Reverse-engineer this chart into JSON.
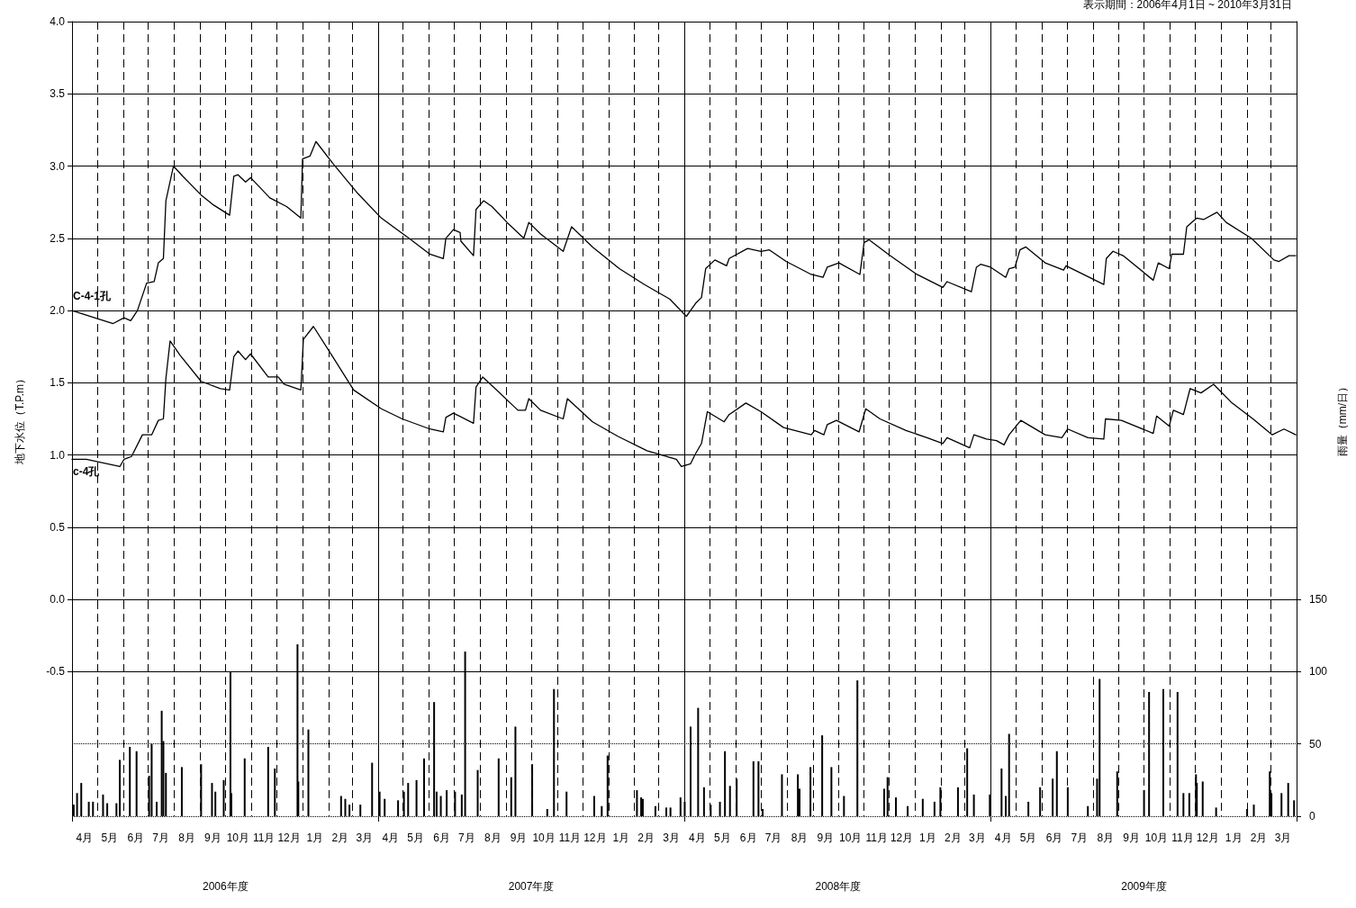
{
  "chart_data": {
    "type": "line",
    "subtitle": "表示期間：2006年4月1日 ~ 2010年3月31日",
    "ylabel": "地下水位（T.P.m）",
    "y2label": "雨量（mm/日）",
    "xlim": [
      "2006-04-01",
      "2010-04-01"
    ],
    "xticks": [
      {
        "value": "2006-04-01",
        "label": null
      },
      {
        "value": "2006-05-01",
        "label": null
      },
      {
        "value": "2006-06-01",
        "label": null
      },
      {
        "value": "2006-07-01",
        "label": null
      },
      {
        "value": "2006-08-01",
        "label": null
      },
      {
        "value": "2006-09-01",
        "label": null
      },
      {
        "value": "2006-10-01",
        "label": null
      },
      {
        "value": "2006-11-01",
        "label": null
      },
      {
        "value": "2006-12-01",
        "label": null
      },
      {
        "value": "2007-01-01",
        "label": null
      },
      {
        "value": "2007-02-01",
        "label": null
      },
      {
        "value": "2007-03-01",
        "label": null
      },
      {
        "value": "2007-04-01",
        "label": null
      },
      {
        "value": "2007-05-01",
        "label": null
      },
      {
        "value": "2007-06-01",
        "label": null
      },
      {
        "value": "2007-07-01",
        "label": null
      },
      {
        "value": "2007-08-01",
        "label": null
      },
      {
        "value": "2007-09-01",
        "label": null
      },
      {
        "value": "2007-10-01",
        "label": null
      },
      {
        "value": "2007-11-01",
        "label": null
      },
      {
        "value": "2007-12-01",
        "label": null
      },
      {
        "value": "2008-01-01",
        "label": null
      },
      {
        "value": "2008-02-01",
        "label": null
      },
      {
        "value": "2008-03-01",
        "label": null
      },
      {
        "value": "2008-04-01",
        "label": null
      },
      {
        "value": "2008-05-01",
        "label": null
      },
      {
        "value": "2008-06-01",
        "label": null
      },
      {
        "value": "2008-07-01",
        "label": null
      },
      {
        "value": "2008-08-01",
        "label": null
      },
      {
        "value": "2008-09-01",
        "label": null
      },
      {
        "value": "2008-10-01",
        "label": null
      },
      {
        "value": "2008-11-01",
        "label": null
      },
      {
        "value": "2008-12-01",
        "label": null
      },
      {
        "value": "2009-01-01",
        "label": null
      },
      {
        "value": "2009-02-01",
        "label": null
      },
      {
        "value": "2009-03-01",
        "label": null
      },
      {
        "value": "2009-04-01",
        "label": null
      },
      {
        "value": "2009-05-01",
        "label": null
      },
      {
        "value": "2009-06-01",
        "label": null
      },
      {
        "value": "2009-07-01",
        "label": null
      },
      {
        "value": "2009-08-01",
        "label": null
      },
      {
        "value": "2009-09-01",
        "label": null
      },
      {
        "value": "2009-10-01",
        "label": null
      },
      {
        "value": "2009-11-01",
        "label": null
      },
      {
        "value": "2009-12-01",
        "label": null
      },
      {
        "value": "2010-01-01",
        "label": null
      },
      {
        "value": "2010-02-01",
        "label": null
      },
      {
        "value": "2010-03-01",
        "label": null
      },
      {
        "value": "2010-04-01",
        "label": null
      },
      {
        "value": "2006-04-16",
        "label": "4月"
      },
      {
        "value": "2006-05-16",
        "label": "5月"
      },
      {
        "value": "2006-06-16",
        "label": "6月"
      },
      {
        "value": "2006-07-16",
        "label": "7月"
      },
      {
        "value": "2006-08-16",
        "label": "8月"
      },
      {
        "value": "2006-09-16",
        "label": "9月"
      },
      {
        "value": "2006-10-16",
        "label": "10月"
      },
      {
        "value": "2006-11-16",
        "label": "11月"
      },
      {
        "value": "2006-12-16",
        "label": "12月"
      },
      {
        "value": "2007-01-16",
        "label": "1月"
      },
      {
        "value": "2007-02-15",
        "label": "2月"
      },
      {
        "value": "2007-03-16",
        "label": "3月"
      },
      {
        "value": "2007-04-16",
        "label": "4月"
      },
      {
        "value": "2007-05-16",
        "label": "5月"
      },
      {
        "value": "2007-06-16",
        "label": "6月"
      },
      {
        "value": "2007-07-16",
        "label": "7月"
      },
      {
        "value": "2007-08-16",
        "label": "8月"
      },
      {
        "value": "2007-09-16",
        "label": "9月"
      },
      {
        "value": "2007-10-16",
        "label": "10月"
      },
      {
        "value": "2007-11-16",
        "label": "11月"
      },
      {
        "value": "2007-12-16",
        "label": "12月"
      },
      {
        "value": "2008-01-16",
        "label": "1月"
      },
      {
        "value": "2008-02-15",
        "label": "2月"
      },
      {
        "value": "2008-03-16",
        "label": "3月"
      },
      {
        "value": "2008-04-16",
        "label": "4月"
      },
      {
        "value": "2008-05-16",
        "label": "5月"
      },
      {
        "value": "2008-06-16",
        "label": "6月"
      },
      {
        "value": "2008-07-16",
        "label": "7月"
      },
      {
        "value": "2008-08-16",
        "label": "8月"
      },
      {
        "value": "2008-09-16",
        "label": "9月"
      },
      {
        "value": "2008-10-16",
        "label": "10月"
      },
      {
        "value": "2008-11-16",
        "label": "11月"
      },
      {
        "value": "2008-12-16",
        "label": "12月"
      },
      {
        "value": "2009-01-16",
        "label": "1月"
      },
      {
        "value": "2009-02-15",
        "label": "2月"
      },
      {
        "value": "2009-03-16",
        "label": "3月"
      },
      {
        "value": "2009-04-16",
        "label": "4月"
      },
      {
        "value": "2009-05-16",
        "label": "5月"
      },
      {
        "value": "2009-06-16",
        "label": "6月"
      },
      {
        "value": "2009-07-16",
        "label": "7月"
      },
      {
        "value": "2009-08-16",
        "label": "8月"
      },
      {
        "value": "2009-09-16",
        "label": "9月"
      },
      {
        "value": "2009-10-16",
        "label": "10月"
      },
      {
        "value": "2009-11-16",
        "label": "11月"
      },
      {
        "value": "2009-12-16",
        "label": "12月"
      },
      {
        "value": "2010-01-16",
        "label": "1月"
      },
      {
        "value": "2010-02-15",
        "label": "2月"
      },
      {
        "value": "2010-03-16",
        "label": "3月"
      }
    ],
    "x2lim": [
      "2006-04-01",
      "2010-04-01"
    ],
    "x2ticks": [
      {
        "value": "2006-04-01",
        "label": null
      },
      {
        "value": "2007-04-01",
        "label": null
      },
      {
        "value": "2008-04-01",
        "label": null
      },
      {
        "value": "2009-04-01",
        "label": null
      },
      {
        "value": "2010-04-01",
        "label": null
      },
      {
        "value": "2006-10-01",
        "label": "2006年度"
      },
      {
        "value": "2007-10-01",
        "label": "2007年度"
      },
      {
        "value": "2008-10-01",
        "label": "2008年度"
      },
      {
        "value": "2009-10-01",
        "label": "2009年度"
      }
    ],
    "ylim": [
      -1.5,
      4
    ],
    "yticks": [
      {
        "value": 4,
        "label": "4.0"
      },
      3.5,
      {
        "value": 3,
        "label": "3.0"
      },
      2.5,
      {
        "value": 2,
        "label": "2.0"
      },
      1.5,
      {
        "value": 1,
        "label": "1.0"
      },
      0.5,
      {
        "value": 0,
        "label": "0.0"
      },
      -0.5
    ],
    "y2lim": [
      0,
      550
    ],
    "y2ticks": [
      0,
      50,
      100,
      150
    ],
    "grid": true,
    "marker": "none",
    "line_style": "solid",
    "series": [
      {
        "name": "C-4-1孔",
        "color": "#000000",
        "x": [
          "2006-04-01",
          "2006-05-20",
          "2006-06-02",
          "2006-06-10",
          "2006-06-18",
          "2006-06-29",
          "2006-07-08",
          "2006-07-13",
          "2006-07-19",
          "2006-07-22",
          "2006-07-31",
          "2006-08-11",
          "2006-09-02",
          "2006-09-17",
          "2006-10-06",
          "2006-10-11",
          "2006-10-16",
          "2006-10-25",
          "2006-10-31",
          "2006-11-23",
          "2006-12-13",
          "2006-12-30",
          "2007-01-01",
          "2007-01-10",
          "2007-01-17",
          "2007-02-06",
          "2007-03-08",
          "2007-04-05",
          "2007-05-08",
          "2007-06-02",
          "2007-06-18",
          "2007-06-21",
          "2007-06-30",
          "2007-07-08",
          "2007-07-09",
          "2007-07-24",
          "2007-07-27",
          "2007-08-05",
          "2007-08-15",
          "2007-09-02",
          "2007-09-22",
          "2007-09-28",
          "2007-10-12",
          "2007-11-08",
          "2007-11-18",
          "2007-12-13",
          "2008-01-14",
          "2008-02-13",
          "2008-03-14",
          "2008-04-03",
          "2008-04-14",
          "2008-04-21",
          "2008-04-26",
          "2008-05-07",
          "2008-05-21",
          "2008-05-24",
          "2008-06-15",
          "2008-07-01",
          "2008-07-11",
          "2008-07-31",
          "2008-08-30",
          "2008-09-13",
          "2008-09-18",
          "2008-10-02",
          "2008-10-27",
          "2008-11-01",
          "2008-11-07",
          "2008-12-02",
          "2009-01-03",
          "2009-02-03",
          "2009-02-08",
          "2009-03-09",
          "2009-03-15",
          "2009-03-20",
          "2009-04-01",
          "2009-04-19",
          "2009-04-23",
          "2009-04-30",
          "2009-05-06",
          "2009-05-13",
          "2009-06-05",
          "2009-06-27",
          "2009-06-30",
          "2009-08-14",
          "2009-08-17",
          "2009-08-25",
          "2009-09-06",
          "2009-10-12",
          "2009-10-18",
          "2009-10-31",
          "2009-11-03",
          "2009-11-17",
          "2009-11-21",
          "2009-12-03",
          "2009-12-11",
          "2009-12-27",
          "2010-01-07",
          "2010-02-06",
          "2010-03-05",
          "2010-03-11",
          "2010-03-23",
          "2010-03-31"
        ],
        "values": [
          2.0,
          1.91,
          1.95,
          1.93,
          2.0,
          2.19,
          2.2,
          2.33,
          2.36,
          2.76,
          3.0,
          2.93,
          2.8,
          2.73,
          2.66,
          2.93,
          2.94,
          2.89,
          2.92,
          2.78,
          2.72,
          2.64,
          3.05,
          3.07,
          3.17,
          3.02,
          2.81,
          2.64,
          2.5,
          2.39,
          2.36,
          2.5,
          2.56,
          2.54,
          2.48,
          2.38,
          2.7,
          2.76,
          2.72,
          2.61,
          2.5,
          2.61,
          2.53,
          2.41,
          2.58,
          2.44,
          2.29,
          2.18,
          2.08,
          1.96,
          2.05,
          2.09,
          2.29,
          2.35,
          2.31,
          2.36,
          2.43,
          2.41,
          2.42,
          2.34,
          2.25,
          2.23,
          2.3,
          2.33,
          2.25,
          2.47,
          2.49,
          2.38,
          2.25,
          2.16,
          2.2,
          2.13,
          2.3,
          2.32,
          2.3,
          2.23,
          2.29,
          2.3,
          2.42,
          2.44,
          2.33,
          2.28,
          2.31,
          2.18,
          2.36,
          2.41,
          2.38,
          2.21,
          2.33,
          2.29,
          2.39,
          2.39,
          2.58,
          2.64,
          2.63,
          2.68,
          2.61,
          2.5,
          2.35,
          2.34,
          2.38,
          2.38
        ]
      },
      {
        "name": "c-4孔",
        "color": "#000000",
        "x": [
          "2006-04-01",
          "2006-04-18",
          "2006-05-28",
          "2006-06-02",
          "2006-06-11",
          "2006-06-24",
          "2006-07-05",
          "2006-07-13",
          "2006-07-19",
          "2006-07-22",
          "2006-07-27",
          "2006-08-08",
          "2006-09-02",
          "2006-09-25",
          "2006-10-06",
          "2006-10-11",
          "2006-10-16",
          "2006-10-25",
          "2006-10-31",
          "2006-11-21",
          "2006-12-03",
          "2006-12-10",
          "2006-12-30",
          "2007-01-02",
          "2007-01-14",
          "2007-02-06",
          "2007-03-03",
          "2007-04-05",
          "2007-04-30",
          "2007-06-02",
          "2007-06-18",
          "2007-06-21",
          "2007-06-30",
          "2007-07-24",
          "2007-07-27",
          "2007-08-04",
          "2007-08-15",
          "2007-09-15",
          "2007-09-24",
          "2007-09-28",
          "2007-10-12",
          "2007-11-08",
          "2007-11-13",
          "2007-12-13",
          "2008-01-12",
          "2008-02-16",
          "2008-03-22",
          "2008-03-28",
          "2008-04-08",
          "2008-04-14",
          "2008-04-21",
          "2008-04-28",
          "2008-05-18",
          "2008-05-24",
          "2008-06-13",
          "2008-07-01",
          "2008-07-28",
          "2008-08-30",
          "2008-09-03",
          "2008-09-14",
          "2008-09-18",
          "2008-09-29",
          "2008-10-26",
          "2008-11-03",
          "2008-11-20",
          "2008-12-21",
          "2009-01-15",
          "2009-02-03",
          "2009-02-08",
          "2009-03-07",
          "2009-03-12",
          "2009-03-27",
          "2009-04-08",
          "2009-04-17",
          "2009-04-23",
          "2009-05-07",
          "2009-06-05",
          "2009-06-25",
          "2009-07-02",
          "2009-07-26",
          "2009-08-14",
          "2009-08-16",
          "2009-09-04",
          "2009-10-12",
          "2009-10-16",
          "2009-10-31",
          "2009-11-05",
          "2009-11-17",
          "2009-11-25",
          "2009-12-08",
          "2009-12-23",
          "2010-01-14",
          "2010-02-08",
          "2010-03-03",
          "2010-03-17",
          "2010-03-31"
        ],
        "values": [
          0.97,
          0.97,
          0.92,
          0.97,
          0.99,
          1.14,
          1.14,
          1.24,
          1.25,
          1.53,
          1.79,
          1.69,
          1.51,
          1.46,
          1.45,
          1.68,
          1.72,
          1.66,
          1.7,
          1.54,
          1.54,
          1.49,
          1.45,
          1.8,
          1.89,
          1.68,
          1.45,
          1.32,
          1.25,
          1.18,
          1.16,
          1.26,
          1.29,
          1.22,
          1.47,
          1.54,
          1.48,
          1.31,
          1.31,
          1.39,
          1.31,
          1.25,
          1.39,
          1.23,
          1.13,
          1.03,
          0.97,
          0.92,
          0.94,
          1.01,
          1.08,
          1.3,
          1.23,
          1.28,
          1.36,
          1.3,
          1.19,
          1.14,
          1.17,
          1.14,
          1.21,
          1.24,
          1.16,
          1.32,
          1.25,
          1.17,
          1.12,
          1.08,
          1.12,
          1.05,
          1.14,
          1.11,
          1.1,
          1.07,
          1.14,
          1.24,
          1.14,
          1.12,
          1.18,
          1.12,
          1.11,
          1.25,
          1.24,
          1.15,
          1.27,
          1.2,
          1.31,
          1.28,
          1.46,
          1.43,
          1.49,
          1.36,
          1.25,
          1.14,
          1.18,
          1.14
        ]
      },
      {
        "type": "bar",
        "axis": "y2",
        "color": "#000000",
        "x": [
          "2006-04-03",
          "2006-04-07",
          "2006-04-12",
          "2006-04-21",
          "2006-04-26",
          "2006-05-08",
          "2006-05-13",
          "2006-05-24",
          "2006-05-28",
          "2006-06-09",
          "2006-06-17",
          "2006-07-02",
          "2006-07-05",
          "2006-07-11",
          "2006-07-17",
          "2006-07-19",
          "2006-07-22",
          "2006-08-10",
          "2006-09-02",
          "2006-09-15",
          "2006-09-19",
          "2006-09-29",
          "2006-10-07",
          "2006-10-08",
          "2006-10-24",
          "2006-11-21",
          "2006-11-29",
          "2006-12-26",
          "2006-12-27",
          "2007-01-08",
          "2007-02-16",
          "2007-02-21",
          "2007-02-26",
          "2007-03-11",
          "2007-03-25",
          "2007-04-03",
          "2007-04-09",
          "2007-04-25",
          "2007-05-02",
          "2007-05-07",
          "2007-05-17",
          "2007-05-26",
          "2007-06-07",
          "2007-06-10",
          "2007-06-15",
          "2007-06-22",
          "2007-07-02",
          "2007-07-10",
          "2007-07-14",
          "2007-07-29",
          "2007-08-23",
          "2007-09-07",
          "2007-09-12",
          "2007-10-02",
          "2007-10-20",
          "2007-10-28",
          "2007-11-12",
          "2007-12-15",
          "2007-12-24",
          "2007-12-31",
          "2008-02-04",
          "2008-02-09",
          "2008-02-11",
          "2008-02-26",
          "2008-03-10",
          "2008-03-15",
          "2008-03-27",
          "2008-04-01",
          "2008-04-08",
          "2008-04-17",
          "2008-04-24",
          "2008-05-02",
          "2008-05-13",
          "2008-05-19",
          "2008-05-25",
          "2008-06-02",
          "2008-06-22",
          "2008-06-28",
          "2008-07-03",
          "2008-07-26",
          "2008-08-14",
          "2008-08-16",
          "2008-08-29",
          "2008-09-12",
          "2008-09-23",
          "2008-10-08",
          "2008-10-24",
          "2008-11-25",
          "2008-11-29",
          "2008-12-09",
          "2008-12-23",
          "2009-01-10",
          "2009-01-24",
          "2009-01-31",
          "2009-02-21",
          "2009-03-04",
          "2009-03-12",
          "2009-03-31",
          "2009-04-14",
          "2009-04-19",
          "2009-04-23",
          "2009-05-16",
          "2009-05-30",
          "2009-06-14",
          "2009-06-19",
          "2009-07-02",
          "2009-07-26",
          "2009-08-06",
          "2009-08-09",
          "2009-08-30",
          "2009-10-01",
          "2009-10-07",
          "2009-10-24",
          "2009-11-10",
          "2009-11-17",
          "2009-11-24",
          "2009-12-02",
          "2009-12-03",
          "2009-12-10",
          "2009-12-26",
          "2010-02-01",
          "2010-02-09",
          "2010-02-28",
          "2010-03-02",
          "2010-03-14",
          "2010-03-22",
          "2010-03-29"
        ],
        "values": [
          8,
          16,
          23,
          10,
          10,
          15,
          9,
          9,
          39,
          48,
          45,
          28,
          50,
          10,
          73,
          52,
          30,
          34,
          36,
          23,
          17,
          25,
          100,
          16,
          40,
          48,
          33,
          119,
          24,
          60,
          14,
          12,
          8,
          8,
          37,
          17,
          12,
          11,
          17,
          23,
          25,
          40,
          79,
          17,
          14,
          18,
          17,
          15,
          114,
          32,
          40,
          27,
          62,
          36,
          5,
          88,
          17,
          14,
          7,
          42,
          18,
          13,
          12,
          7,
          6,
          6,
          13,
          10,
          62,
          75,
          20,
          8,
          10,
          45,
          21,
          26,
          38,
          38,
          5,
          29,
          29,
          19,
          34,
          56,
          34,
          14,
          94,
          19,
          27,
          13,
          7,
          12,
          10,
          20,
          20,
          47,
          15,
          15,
          33,
          14,
          57,
          10,
          20,
          26,
          45,
          20,
          7,
          26,
          95,
          31,
          18,
          86,
          88,
          86,
          16,
          16,
          29,
          23,
          24,
          6,
          5,
          8,
          31,
          16,
          16,
          23,
          11
        ]
      }
    ]
  }
}
